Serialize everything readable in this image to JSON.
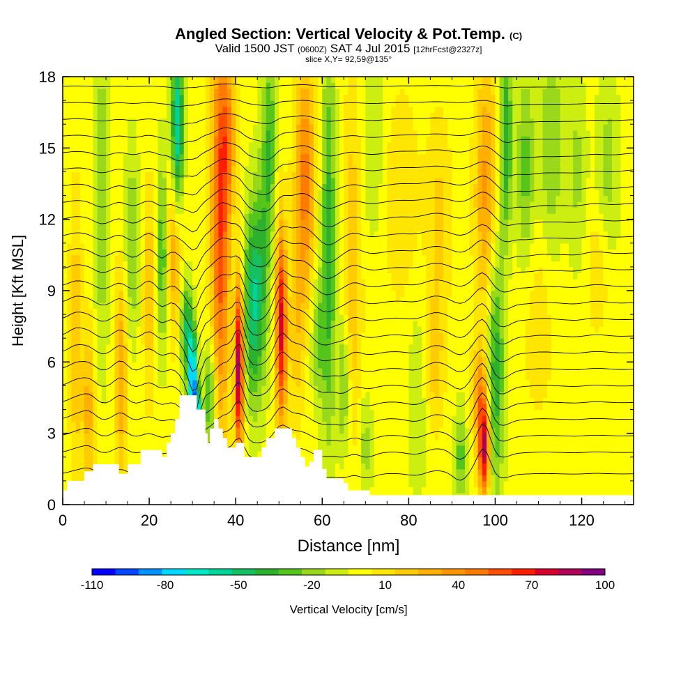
{
  "titles": {
    "main": "Angled Section: Vertical Velocity & Pot.Temp.",
    "main_suffix": "(C)",
    "valid_a": "Valid 1500 JST",
    "valid_b": "(0600Z)",
    "valid_c": "SAT 4 Jul 2015",
    "valid_d": "[12hrFcst@2327z]",
    "slice": "slice X,Y= 92,59@135°"
  },
  "chart_data": {
    "type": "heatmap",
    "xlabel": "Distance [nm]",
    "ylabel": "Height [Kft MSL]",
    "xlim": [
      0,
      132
    ],
    "ylim": [
      0,
      18
    ],
    "xticks": [
      "0",
      "20",
      "40",
      "60",
      "80",
      "100",
      "120"
    ],
    "yticks": [
      "0",
      "3",
      "6",
      "9",
      "12",
      "15",
      "18"
    ],
    "colorbar": {
      "label": "Vertical Velocity [cm/s]",
      "tick_labels": [
        "-110",
        "-80",
        "-50",
        "-20",
        "10",
        "40",
        "70",
        "100"
      ],
      "levels": [
        -110,
        -100,
        -90,
        -80,
        -70,
        -60,
        -50,
        -40,
        -30,
        -20,
        -10,
        0,
        10,
        20,
        30,
        40,
        50,
        60,
        70,
        80,
        90,
        100
      ],
      "colors": [
        "#0000ff",
        "#0047ff",
        "#0090ff",
        "#00d8ff",
        "#00e8c8",
        "#00d49a",
        "#14c060",
        "#2db02d",
        "#55c51c",
        "#9ad81c",
        "#ccee11",
        "#ffff00",
        "#ffe600",
        "#ffcc00",
        "#ffb000",
        "#ff9600",
        "#ff7a00",
        "#ff4d00",
        "#ff1e00",
        "#d8002c",
        "#b00058",
        "#800080"
      ]
    },
    "background_value": 5,
    "features": [
      {
        "x": 3,
        "z": 7,
        "sx": 1.0,
        "sz": 4.0,
        "w": 25
      },
      {
        "x": 6,
        "z": 4,
        "sx": 1.0,
        "sz": 2.5,
        "w": 30
      },
      {
        "x": 9,
        "z": 13,
        "sx": 1.2,
        "sz": 5.0,
        "w": -25
      },
      {
        "x": 13.5,
        "z": 5.5,
        "sx": 1.0,
        "sz": 3.0,
        "w": 35
      },
      {
        "x": 16,
        "z": 11,
        "sx": 1.2,
        "sz": 3.0,
        "w": -25
      },
      {
        "x": 20,
        "z": 9,
        "sx": 1.0,
        "sz": 3.0,
        "w": 25
      },
      {
        "x": 23,
        "z": 10.5,
        "sx": 0.9,
        "sz": 3.0,
        "w": -35
      },
      {
        "x": 26,
        "z": 11,
        "sx": 1.2,
        "sz": 2.5,
        "w": 45
      },
      {
        "x": 26.5,
        "z": 15.5,
        "sx": 1.0,
        "sz": 3.0,
        "w": -70
      },
      {
        "x": 28.5,
        "z": 7.5,
        "sx": 1.0,
        "sz": 1.5,
        "w": -45
      },
      {
        "x": 30,
        "z": 5.3,
        "sx": 0.7,
        "sz": 1.5,
        "w": -90
      },
      {
        "x": 31,
        "z": 3.6,
        "sx": 0.6,
        "sz": 0.9,
        "w": -100
      },
      {
        "x": 34,
        "z": 4.5,
        "sx": 1.0,
        "sz": 1.6,
        "w": -40
      },
      {
        "x": 36.5,
        "z": 12,
        "sx": 1.5,
        "sz": 6.0,
        "w": 65
      },
      {
        "x": 38.5,
        "z": 15.5,
        "sx": 1.2,
        "sz": 2.0,
        "w": 30
      },
      {
        "x": 40.8,
        "z": 5.8,
        "sx": 0.7,
        "sz": 2.5,
        "w": 100
      },
      {
        "x": 44,
        "z": 8.5,
        "sx": 1.5,
        "sz": 3.0,
        "w": -55
      },
      {
        "x": 46.5,
        "z": 11,
        "sx": 1.2,
        "sz": 4.0,
        "w": -25
      },
      {
        "x": 48,
        "z": 15.5,
        "sx": 1.0,
        "sz": 3.0,
        "w": -30
      },
      {
        "x": 50.5,
        "z": 7.5,
        "sx": 0.9,
        "sz": 3.0,
        "w": 80
      },
      {
        "x": 56,
        "z": 13.5,
        "sx": 1.6,
        "sz": 3.5,
        "w": 50
      },
      {
        "x": 54,
        "z": 7,
        "sx": 1.2,
        "sz": 2.5,
        "w": 20
      },
      {
        "x": 61.5,
        "z": 11,
        "sx": 1.2,
        "sz": 6.0,
        "w": -40
      },
      {
        "x": 59,
        "z": 7,
        "sx": 1.2,
        "sz": 2.0,
        "w": -25
      },
      {
        "x": 65,
        "z": 5,
        "sx": 1.0,
        "sz": 2.0,
        "w": -30
      },
      {
        "x": 67,
        "z": 10,
        "sx": 1.5,
        "sz": 5.0,
        "w": 25
      },
      {
        "x": 70,
        "z": 2.5,
        "sx": 1.2,
        "sz": 1.5,
        "w": -20
      },
      {
        "x": 72,
        "z": 15,
        "sx": 2.0,
        "sz": 3.0,
        "w": -15
      },
      {
        "x": 78,
        "z": 13,
        "sx": 3.0,
        "sz": 3.0,
        "w": 15
      },
      {
        "x": 82,
        "z": 4,
        "sx": 1.5,
        "sz": 3.0,
        "w": -15
      },
      {
        "x": 87,
        "z": 12,
        "sx": 2.0,
        "sz": 3.0,
        "w": 18
      },
      {
        "x": 86,
        "z": 6,
        "sx": 1.5,
        "sz": 2.0,
        "w": 20
      },
      {
        "x": 92,
        "z": 2,
        "sx": 1.0,
        "sz": 1.5,
        "w": -30
      },
      {
        "x": 97.5,
        "z": 2.3,
        "sx": 0.9,
        "sz": 1.4,
        "w": 85
      },
      {
        "x": 96.5,
        "z": 4.5,
        "sx": 1.2,
        "sz": 1.5,
        "w": 40
      },
      {
        "x": 98,
        "z": 13,
        "sx": 1.8,
        "sz": 4.0,
        "w": 40
      },
      {
        "x": 102.5,
        "z": 15.5,
        "sx": 1.0,
        "sz": 3.0,
        "w": -45
      },
      {
        "x": 100,
        "z": 6,
        "sx": 1.5,
        "sz": 4.0,
        "w": -45
      },
      {
        "x": 107,
        "z": 14,
        "sx": 1.5,
        "sz": 3.0,
        "w": -30
      },
      {
        "x": 113,
        "z": 15,
        "sx": 2.0,
        "sz": 3.5,
        "w": -25
      },
      {
        "x": 119,
        "z": 14,
        "sx": 1.5,
        "sz": 3.0,
        "w": -18
      },
      {
        "x": 126,
        "z": 14,
        "sx": 2.0,
        "sz": 3.0,
        "w": -20
      },
      {
        "x": 124,
        "z": 10,
        "sx": 2.0,
        "sz": 2.0,
        "w": 15
      },
      {
        "x": 110,
        "z": 8,
        "sx": 3.0,
        "sz": 3.0,
        "w": 12
      }
    ],
    "terrain": [
      [
        0,
        0.6
      ],
      [
        1,
        1.0
      ],
      [
        5,
        1.4
      ],
      [
        7,
        1.7
      ],
      [
        12,
        1.7
      ],
      [
        13,
        1.3
      ],
      [
        15,
        1.7
      ],
      [
        18,
        2.3
      ],
      [
        22,
        2.3
      ],
      [
        23,
        2.0
      ],
      [
        24,
        2.6
      ],
      [
        25,
        3.0
      ],
      [
        26,
        3.6
      ],
      [
        27,
        4.6
      ],
      [
        30,
        4.6
      ],
      [
        31,
        4.0
      ],
      [
        33,
        3.0
      ],
      [
        33.5,
        2.6
      ],
      [
        34,
        3.2
      ],
      [
        35,
        3.6
      ],
      [
        36,
        3.2
      ],
      [
        37,
        2.8
      ],
      [
        38,
        2.4
      ],
      [
        40,
        2.6
      ],
      [
        42,
        2.0
      ],
      [
        45,
        2.0
      ],
      [
        46,
        2.4
      ],
      [
        47,
        2.8
      ],
      [
        48,
        2.8
      ],
      [
        49,
        3.2
      ],
      [
        52,
        3.2
      ],
      [
        53,
        2.8
      ],
      [
        54,
        2.4
      ],
      [
        55,
        2.0
      ],
      [
        56,
        1.6
      ],
      [
        57,
        1.8
      ],
      [
        58,
        2.3
      ],
      [
        60,
        1.5
      ],
      [
        61,
        1.1
      ],
      [
        64,
        1.1
      ],
      [
        65,
        0.9
      ],
      [
        66,
        0.6
      ],
      [
        68,
        0.6
      ],
      [
        71,
        0.4
      ],
      [
        132,
        0.4
      ]
    ],
    "isentropes": [
      {
        "base": 1.3,
        "amp": 1.0
      },
      {
        "base": 2.2,
        "amp": 1.0
      },
      {
        "base": 2.9,
        "amp": 1.0
      },
      {
        "base": 3.6,
        "amp": 1.0
      },
      {
        "base": 4.3,
        "amp": 1.0
      },
      {
        "base": 5.0,
        "amp": 1.0
      },
      {
        "base": 5.7,
        "amp": 1.0
      },
      {
        "base": 6.4,
        "amp": 1.0
      },
      {
        "base": 7.1,
        "amp": 1.0
      },
      {
        "base": 7.8,
        "amp": 1.0
      },
      {
        "base": 8.5,
        "amp": 1.0
      },
      {
        "base": 9.2,
        "amp": 0.9
      },
      {
        "base": 9.9,
        "amp": 0.9
      },
      {
        "base": 10.6,
        "amp": 0.9
      },
      {
        "base": 11.3,
        "amp": 0.8
      },
      {
        "base": 12.0,
        "amp": 0.8
      },
      {
        "base": 12.7,
        "amp": 0.7
      },
      {
        "base": 13.4,
        "amp": 0.7
      },
      {
        "base": 14.1,
        "amp": 0.6
      },
      {
        "base": 14.8,
        "amp": 0.6
      },
      {
        "base": 15.5,
        "amp": 0.5
      },
      {
        "base": 16.2,
        "amp": 0.4
      },
      {
        "base": 16.9,
        "amp": 0.3
      },
      {
        "base": 17.6,
        "amp": 0.2
      }
    ]
  }
}
